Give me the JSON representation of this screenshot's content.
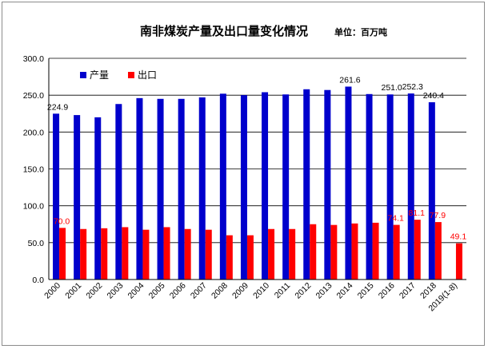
{
  "chart_data": {
    "type": "bar",
    "title": "南非煤炭产量及出口量变化情况",
    "unit_note": "单位：百万吨",
    "categories": [
      "2000",
      "2001",
      "2002",
      "2003",
      "2004",
      "2005",
      "2006",
      "2007",
      "2008",
      "2009",
      "2010",
      "2011",
      "2012",
      "2013",
      "2014",
      "2015",
      "2016",
      "2017",
      "2018",
      "2019(1-8)"
    ],
    "series": [
      {
        "name": "产量",
        "color": "#0000cc",
        "values": [
          224.9,
          223,
          220,
          238,
          246,
          245,
          245,
          247,
          252,
          250,
          254,
          251,
          258,
          257,
          261.6,
          251.5,
          251.0,
          252.3,
          240.4,
          null
        ],
        "labels": [
          "224.9",
          "",
          "",
          "",
          "",
          "",
          "",
          "",
          "",
          "",
          "",
          "",
          "",
          "",
          "261.6",
          "",
          "251.0",
          "252.3",
          "240.4",
          ""
        ]
      },
      {
        "name": "出口",
        "color": "#ff0000",
        "values": [
          70.0,
          68.5,
          69.5,
          71,
          67.5,
          71,
          68.5,
          67.5,
          60,
          60,
          68.5,
          68.5,
          75,
          74,
          76,
          77,
          74.1,
          81.1,
          77.9,
          49.1
        ],
        "labels": [
          "70.0",
          "",
          "",
          "",
          "",
          "",
          "",
          "",
          "",
          "",
          "",
          "",
          "",
          "",
          "",
          "",
          "74.1",
          "81.1",
          "77.9",
          "49.1"
        ]
      }
    ],
    "yticks": [
      "0.0",
      "50.0",
      "100.0",
      "150.0",
      "200.0",
      "250.0",
      "300.0"
    ],
    "ylim": [
      0,
      300
    ],
    "grid": true,
    "legend": "top-left"
  }
}
